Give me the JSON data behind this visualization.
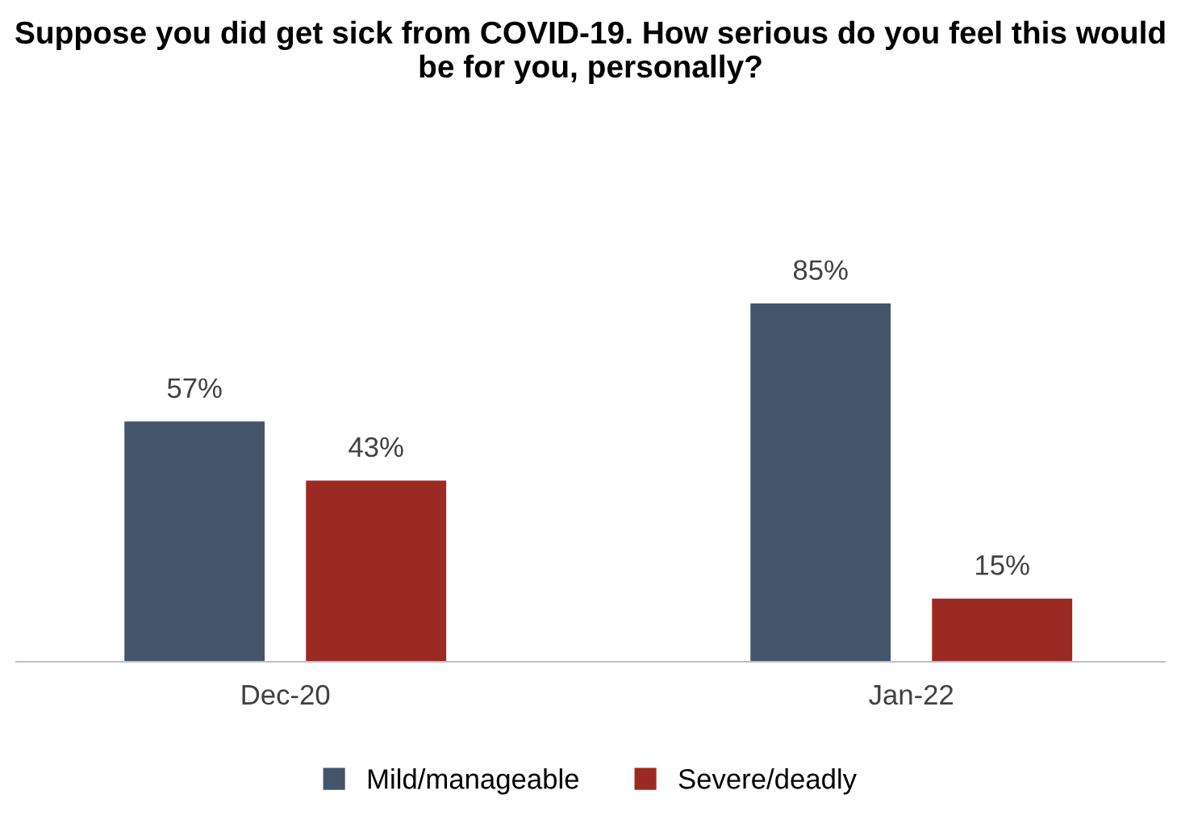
{
  "chart_data": {
    "type": "bar",
    "title": "Suppose you did get sick from COVID-19. How serious do you feel this would be for you, personally?",
    "categories": [
      "Dec-20",
      "Jan-22"
    ],
    "series": [
      {
        "name": "Mild/manageable",
        "color": "#44546a",
        "values": [
          57,
          85
        ],
        "value_labels": [
          "57%",
          "85%"
        ]
      },
      {
        "name": "Severe/deadly",
        "color": "#9b2a22",
        "values": [
          43,
          15
        ],
        "value_labels": [
          "43%",
          "15%"
        ]
      }
    ],
    "legend": "bottom",
    "grid": false
  }
}
